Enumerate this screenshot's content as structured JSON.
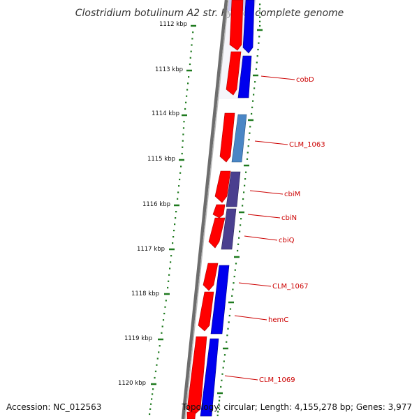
{
  "title": "Clostridium botulinum A2 str. Kyoto, complete genome",
  "accession": "Accession: NC_012563",
  "summary": "Topology: circular; Length: 4,155,278 bp; Genes: 3,977",
  "colors": {
    "backbone": "#7a7a7a",
    "tick_green": "#1f7a1f",
    "cds": "#ff0000",
    "gene_blue": "#0000ee",
    "gene_steel": "#4a86c5",
    "gene_slate": "#4a3f8f",
    "label": "#cc0000"
  },
  "ticks": [
    {
      "label": "1112 kbp"
    },
    {
      "label": "1113 kbp"
    },
    {
      "label": "1114 kbp"
    },
    {
      "label": "1115 kbp"
    },
    {
      "label": "1116 kbp"
    },
    {
      "label": "1117 kbp"
    },
    {
      "label": "1118 kbp"
    },
    {
      "label": "1119 kbp"
    },
    {
      "label": "1120 kbp"
    }
  ],
  "genes": [
    {
      "label": "cobD"
    },
    {
      "label": "CLM_1063"
    },
    {
      "label": "cbiM"
    },
    {
      "label": "cbiN"
    },
    {
      "label": "cbiQ"
    },
    {
      "label": "CLM_1067"
    },
    {
      "label": "hemC"
    },
    {
      "label": "CLM_1069"
    }
  ]
}
